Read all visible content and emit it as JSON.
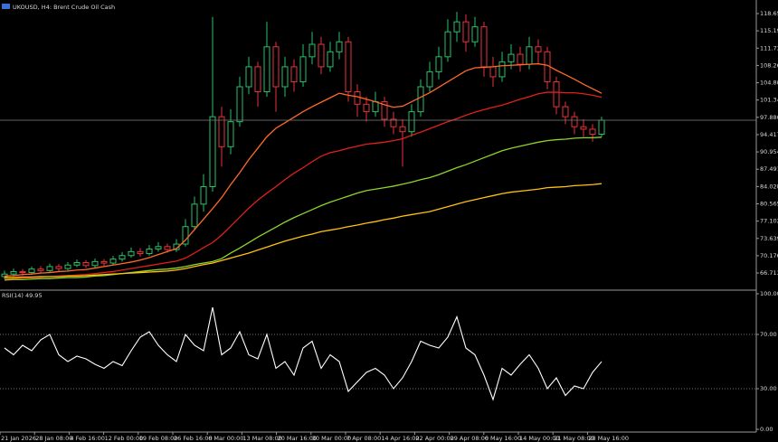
{
  "chart_data": [
    {
      "type": "candlestick",
      "title": "UKOUSD, H4: Brent Crude Oil Cash",
      "open": [
        66.0,
        66.5,
        67.0,
        66.8,
        67.5,
        67.2,
        68.0,
        67.6,
        68.3,
        68.8,
        68.2,
        69.0,
        68.7,
        69.5,
        70.2,
        71.0,
        70.6,
        71.5,
        72.0,
        71.4,
        72.5,
        76.0,
        80.5,
        84.0,
        98.0,
        92.0,
        97.0,
        104.0,
        108.0,
        103.0,
        112.0,
        104.0,
        108.0,
        105.0,
        110.0,
        112.5,
        108.0,
        111.0,
        113.0,
        103.0,
        100.5,
        99.0,
        101.0,
        97.5,
        96.0,
        95.0,
        99.0,
        104.0,
        107.0,
        110.0,
        115.0,
        117.0,
        113.0,
        116.0,
        108.0,
        106.0,
        109.0,
        110.5,
        108.5,
        112.0,
        111.0,
        105.0,
        100.0,
        98.0,
        96.0,
        95.5,
        94.5
      ],
      "high": [
        67.2,
        67.6,
        67.5,
        68.0,
        68.1,
        68.6,
        68.5,
        68.9,
        69.4,
        69.3,
        69.6,
        69.5,
        70.1,
        70.9,
        71.8,
        71.7,
        72.3,
        72.9,
        72.6,
        73.5,
        77.5,
        82.0,
        86.5,
        118.0,
        100.0,
        99.5,
        106.0,
        110.0,
        109.0,
        117.0,
        113.0,
        110.0,
        109.5,
        112.5,
        115.0,
        114.0,
        113.0,
        115.0,
        114.0,
        104.5,
        102.0,
        103.0,
        102.0,
        99.0,
        97.5,
        100.5,
        105.5,
        109.0,
        112.0,
        117.5,
        119.0,
        118.5,
        118.0,
        117.0,
        110.0,
        111.0,
        112.5,
        112.0,
        114.0,
        113.5,
        112.0,
        106.0,
        101.0,
        99.0,
        97.5,
        96.5,
        98.0
      ],
      "low": [
        65.5,
        66.0,
        66.2,
        66.4,
        66.7,
        66.9,
        67.0,
        67.2,
        67.9,
        67.7,
        67.8,
        68.1,
        68.3,
        69.0,
        69.8,
        70.0,
        70.2,
        71.0,
        70.8,
        70.9,
        72.0,
        75.5,
        79.0,
        83.0,
        88.0,
        90.5,
        96.0,
        102.5,
        100.0,
        102.0,
        99.0,
        102.0,
        103.0,
        104.0,
        108.5,
        106.5,
        107.0,
        109.5,
        101.0,
        98.0,
        97.0,
        98.0,
        96.0,
        94.5,
        88.0,
        94.0,
        98.0,
        103.0,
        105.5,
        109.0,
        113.0,
        111.0,
        112.0,
        106.0,
        104.0,
        105.0,
        107.5,
        107.0,
        107.5,
        108.5,
        103.5,
        98.5,
        96.5,
        94.5,
        94.0,
        93.0,
        94.0
      ],
      "close": [
        66.5,
        67.0,
        66.8,
        67.5,
        67.2,
        68.0,
        67.6,
        68.3,
        68.8,
        68.2,
        69.0,
        68.7,
        69.5,
        70.2,
        71.0,
        70.6,
        71.5,
        72.0,
        71.4,
        72.5,
        76.0,
        80.5,
        84.0,
        98.0,
        92.0,
        97.0,
        104.0,
        108.0,
        103.0,
        112.0,
        104.0,
        108.0,
        105.0,
        110.0,
        112.5,
        108.0,
        111.0,
        113.0,
        103.0,
        100.5,
        99.0,
        101.0,
        97.5,
        96.0,
        95.0,
        99.0,
        104.0,
        107.0,
        110.0,
        115.0,
        117.0,
        113.0,
        116.0,
        108.0,
        106.0,
        109.0,
        110.5,
        108.5,
        112.0,
        111.0,
        105.0,
        100.0,
        98.0,
        96.0,
        95.5,
        94.5,
        97.3
      ],
      "up_color": "#26c26a",
      "down_color": "#e8323c",
      "lines": [
        {
          "color": "#ff6a2a",
          "values": [
            66.1,
            66.2,
            66.4,
            66.5,
            66.7,
            66.8,
            67.0,
            67.1,
            67.3,
            67.4,
            67.7,
            68.0,
            68.3,
            68.6,
            68.9,
            69.3,
            69.8,
            70.4,
            71.0,
            71.6,
            73.3,
            75.4,
            77.5,
            79.6,
            81.8,
            84.4,
            86.8,
            89.4,
            91.7,
            94.0,
            95.7,
            96.8,
            97.9,
            99.0,
            100.0,
            100.9,
            101.8,
            102.7,
            102.3,
            102.0,
            101.5,
            101.0,
            100.4,
            99.9,
            100.1,
            101.0,
            101.9,
            102.8,
            103.9,
            105.0,
            106.1,
            107.2,
            107.8,
            107.9,
            108.0,
            108.2,
            108.3,
            108.4,
            108.5,
            108.6,
            108.3,
            107.3,
            106.4,
            105.5,
            104.5,
            103.6,
            102.7
          ]
        },
        {
          "color": "#e0201b",
          "values": [
            65.5,
            65.6,
            65.7,
            65.8,
            65.9,
            66.0,
            66.1,
            66.2,
            66.3,
            66.4,
            66.6,
            66.8,
            67.0,
            67.3,
            67.6,
            67.9,
            68.2,
            68.5,
            68.8,
            69.1,
            69.7,
            70.7,
            71.8,
            72.8,
            74.3,
            76.1,
            77.9,
            79.7,
            81.3,
            82.7,
            84.0,
            85.4,
            86.7,
            87.8,
            89.0,
            90.1,
            90.8,
            91.2,
            91.7,
            92.1,
            92.5,
            92.7,
            92.9,
            93.2,
            93.6,
            94.3,
            94.9,
            95.6,
            96.3,
            97.0,
            97.6,
            98.3,
            98.9,
            99.4,
            99.9,
            100.3,
            100.9,
            101.5,
            102.0,
            102.6,
            102.9,
            102.9,
            102.8,
            102.8,
            102.6,
            102.3,
            101.9
          ]
        },
        {
          "color": "#8fd42a",
          "values": [
            65.3,
            65.4,
            65.4,
            65.5,
            65.6,
            65.6,
            65.7,
            65.8,
            65.8,
            65.9,
            66.1,
            66.2,
            66.4,
            66.6,
            66.8,
            67.0,
            67.2,
            67.4,
            67.5,
            67.7,
            68.0,
            68.4,
            68.7,
            69.0,
            69.6,
            70.7,
            71.7,
            72.8,
            73.9,
            74.9,
            75.9,
            76.9,
            77.8,
            78.6,
            79.4,
            80.2,
            80.9,
            81.5,
            82.1,
            82.7,
            83.2,
            83.5,
            83.8,
            84.1,
            84.5,
            84.9,
            85.4,
            85.8,
            86.4,
            87.1,
            87.8,
            88.4,
            89.1,
            89.8,
            90.5,
            91.2,
            91.7,
            92.1,
            92.5,
            92.9,
            93.2,
            93.4,
            93.5,
            93.7,
            93.8,
            93.8,
            93.9
          ]
        },
        {
          "color": "#ffc20e",
          "values": [
            65.8,
            65.8,
            65.9,
            65.9,
            66.0,
            66.0,
            66.0,
            66.1,
            66.1,
            66.2,
            66.3,
            66.4,
            66.5,
            66.6,
            66.7,
            66.8,
            66.9,
            67.0,
            67.1,
            67.3,
            67.6,
            68.0,
            68.4,
            68.7,
            69.2,
            69.7,
            70.2,
            70.7,
            71.3,
            71.9,
            72.5,
            73.1,
            73.6,
            74.1,
            74.5,
            75.0,
            75.3,
            75.6,
            76.0,
            76.3,
            76.7,
            77.0,
            77.4,
            77.7,
            78.1,
            78.4,
            78.7,
            79.0,
            79.5,
            80.0,
            80.5,
            81.0,
            81.4,
            81.8,
            82.2,
            82.6,
            82.9,
            83.1,
            83.3,
            83.5,
            83.8,
            83.9,
            84.0,
            84.2,
            84.3,
            84.4,
            84.6
          ]
        }
      ],
      "ylim": [
        63.46,
        121.37
      ],
      "yticks": [
        118.658,
        115.195,
        111.732,
        108.269,
        104.806,
        101.343,
        {
          "value": 97.88,
          "label": "97.880"
        },
        94.417,
        90.954,
        87.491,
        84.028,
        80.565,
        77.102,
        73.639,
        70.176,
        66.713
      ]
    },
    {
      "type": "line",
      "title": "RSI(14) 49.95",
      "color": "#ffffff",
      "values": [
        60,
        55,
        62,
        58,
        66,
        70,
        55,
        50,
        54,
        52,
        48,
        45,
        50,
        47,
        58,
        68,
        72,
        62,
        55,
        50,
        70,
        62,
        58,
        90,
        55,
        60,
        72,
        55,
        52,
        70,
        45,
        50,
        40,
        60,
        65,
        45,
        55,
        50,
        28,
        35,
        42,
        45,
        40,
        30,
        38,
        50,
        65,
        62,
        60,
        68,
        83,
        60,
        55,
        40,
        22,
        45,
        40,
        48,
        55,
        45,
        30,
        38,
        25,
        32,
        30,
        42,
        49.95
      ],
      "ylim": [
        0,
        100
      ],
      "yticks": [
        {
          "value": 100,
          "label": "100.00"
        },
        {
          "value": 70,
          "label": "70.00"
        },
        {
          "value": 30,
          "label": "30.00"
        },
        {
          "value": 0,
          "label": "0.00"
        }
      ],
      "levels": [
        70,
        30
      ]
    }
  ],
  "time_axis": {
    "labels": [
      "21 Jan 2026",
      "28 Jan 08:00",
      "4 Feb 16:00",
      "12 Feb 00:00",
      "19 Feb 08:00",
      "26 Feb 16:00",
      "6 Mar 00:00",
      "13 Mar 08:00",
      "20 Mar 16:00",
      "30 Mar 00:00",
      "7 Apr 08:00",
      "14 Apr 16:00",
      "22 Apr 00:00",
      "29 Apr 08:00",
      "6 May 16:00",
      "14 May 00:00",
      "21 May 08:00",
      "28 May 16:00"
    ]
  }
}
